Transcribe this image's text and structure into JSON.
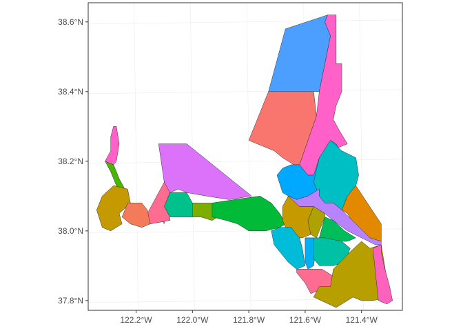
{
  "map": {
    "axes": {
      "lon_ticks": [
        -122.2,
        -122.0,
        -121.8,
        -121.6,
        -121.4
      ],
      "lat_ticks": [
        37.8,
        38.0,
        38.2,
        38.4,
        38.6
      ],
      "lon_labels": [
        "122.2°W",
        "122.0°W",
        "121.8°W",
        "121.6°W",
        "121.4°W"
      ],
      "lat_labels": [
        "37.8°N",
        "38.0°N",
        "38.2°N",
        "38.4°N",
        "38.6°N"
      ],
      "xlim": [
        -122.37,
        -121.255
      ],
      "ylim": [
        37.772,
        38.655
      ]
    },
    "style": {
      "grid": true,
      "border_color": "#333333",
      "grid_color": "#ebebeb",
      "background": "#ffffff"
    },
    "regions": [
      {
        "fill": "#4C9EFF",
        "points": [
          [
            -121.67,
            38.58
          ],
          [
            -121.52,
            38.62
          ],
          [
            -121.53,
            38.6
          ],
          [
            -121.51,
            38.56
          ],
          [
            -121.52,
            38.52
          ],
          [
            -121.55,
            38.4
          ],
          [
            -121.57,
            38.4
          ],
          [
            -121.73,
            38.4
          ],
          [
            -121.67,
            38.58
          ]
        ]
      },
      {
        "fill": "#FF61C9",
        "points": [
          [
            -121.52,
            38.62
          ],
          [
            -121.49,
            38.62
          ],
          [
            -121.49,
            38.48
          ],
          [
            -121.47,
            38.48
          ],
          [
            -121.47,
            38.4
          ],
          [
            -121.49,
            38.36
          ],
          [
            -121.5,
            38.32
          ],
          [
            -121.48,
            38.29
          ],
          [
            -121.45,
            38.25
          ],
          [
            -121.54,
            38.22
          ],
          [
            -121.56,
            38.16
          ],
          [
            -121.59,
            38.16
          ],
          [
            -121.62,
            38.19
          ],
          [
            -121.59,
            38.26
          ],
          [
            -121.56,
            38.33
          ],
          [
            -121.55,
            38.4
          ],
          [
            -121.52,
            38.52
          ],
          [
            -121.51,
            38.56
          ],
          [
            -121.53,
            38.6
          ],
          [
            -121.52,
            38.62
          ]
        ]
      },
      {
        "fill": "#F8766D",
        "points": [
          [
            -121.73,
            38.4
          ],
          [
            -121.57,
            38.4
          ],
          [
            -121.56,
            38.33
          ],
          [
            -121.59,
            38.26
          ],
          [
            -121.62,
            38.19
          ],
          [
            -121.64,
            38.19
          ],
          [
            -121.68,
            38.21
          ],
          [
            -121.71,
            38.23
          ],
          [
            -121.8,
            38.26
          ],
          [
            -121.73,
            38.4
          ]
        ]
      },
      {
        "fill": "#00A9FF",
        "points": [
          [
            -121.62,
            38.19
          ],
          [
            -121.59,
            38.16
          ],
          [
            -121.57,
            38.16
          ],
          [
            -121.55,
            38.21
          ],
          [
            -121.51,
            38.26
          ],
          [
            -121.49,
            38.25
          ],
          [
            -121.47,
            38.22
          ],
          [
            -121.51,
            38.17
          ],
          [
            -121.55,
            38.12
          ],
          [
            -121.59,
            38.1
          ],
          [
            -121.63,
            38.09
          ],
          [
            -121.66,
            38.1
          ],
          [
            -121.68,
            38.11
          ],
          [
            -121.7,
            38.16
          ],
          [
            -121.68,
            38.18
          ],
          [
            -121.65,
            38.19
          ],
          [
            -121.62,
            38.19
          ]
        ]
      },
      {
        "fill": "#00BFC4",
        "points": [
          [
            -121.51,
            38.26
          ],
          [
            -121.47,
            38.23
          ],
          [
            -121.42,
            38.21
          ],
          [
            -121.41,
            38.16
          ],
          [
            -121.42,
            38.13
          ],
          [
            -121.45,
            38.1
          ],
          [
            -121.47,
            38.06
          ],
          [
            -121.5,
            38.08
          ],
          [
            -121.53,
            38.08
          ],
          [
            -121.55,
            38.1
          ],
          [
            -121.57,
            38.14
          ],
          [
            -121.55,
            38.21
          ],
          [
            -121.51,
            38.26
          ]
        ]
      },
      {
        "fill": "#E38900",
        "points": [
          [
            -121.42,
            38.13
          ],
          [
            -121.33,
            38.02
          ],
          [
            -121.33,
            37.97
          ],
          [
            -121.37,
            37.98
          ],
          [
            -121.42,
            38.01
          ],
          [
            -121.45,
            38.05
          ],
          [
            -121.47,
            38.06
          ],
          [
            -121.45,
            38.1
          ],
          [
            -121.42,
            38.13
          ]
        ]
      },
      {
        "fill": "#DC71FA",
        "points": [
          [
            -122.12,
            38.25
          ],
          [
            -122.02,
            38.25
          ],
          [
            -121.79,
            38.1
          ],
          [
            -121.87,
            38.09
          ],
          [
            -121.95,
            38.1
          ],
          [
            -122.02,
            38.11
          ],
          [
            -122.05,
            38.12
          ],
          [
            -122.08,
            38.11
          ],
          [
            -122.1,
            38.09
          ],
          [
            -122.13,
            38.06
          ],
          [
            -122.1,
            38.02
          ],
          [
            -122.1,
            38.14
          ],
          [
            -122.12,
            38.25
          ]
        ]
      },
      {
        "fill": "#00C08B",
        "points": [
          [
            -122.08,
            38.11
          ],
          [
            -122.02,
            38.11
          ],
          [
            -122.0,
            38.08
          ],
          [
            -122.0,
            38.04
          ],
          [
            -122.08,
            38.04
          ],
          [
            -122.1,
            38.07
          ],
          [
            -122.08,
            38.11
          ]
        ]
      },
      {
        "fill": "#FF6C91",
        "points": [
          [
            -122.1,
            38.14
          ],
          [
            -122.08,
            38.11
          ],
          [
            -122.1,
            38.07
          ],
          [
            -122.08,
            38.04
          ],
          [
            -122.08,
            38.03
          ],
          [
            -122.15,
            38.02
          ],
          [
            -122.16,
            38.05
          ],
          [
            -122.14,
            38.08
          ],
          [
            -122.1,
            38.14
          ]
        ]
      },
      {
        "fill": "#7CAE00",
        "points": [
          [
            -122.0,
            38.08
          ],
          [
            -121.93,
            38.08
          ],
          [
            -121.91,
            38.04
          ],
          [
            -121.93,
            38.03
          ],
          [
            -121.97,
            38.04
          ],
          [
            -122.0,
            38.04
          ],
          [
            -122.0,
            38.08
          ]
        ]
      },
      {
        "fill": "#00BA38",
        "points": [
          [
            -121.93,
            38.08
          ],
          [
            -121.85,
            38.09
          ],
          [
            -121.76,
            38.1
          ],
          [
            -121.72,
            38.08
          ],
          [
            -121.69,
            38.05
          ],
          [
            -121.67,
            38.02
          ],
          [
            -121.69,
            38.01
          ],
          [
            -121.74,
            38.0
          ],
          [
            -121.8,
            38.0
          ],
          [
            -121.84,
            38.02
          ],
          [
            -121.88,
            38.03
          ],
          [
            -121.93,
            38.04
          ],
          [
            -121.93,
            38.08
          ]
        ]
      },
      {
        "fill": "#49B500",
        "points": [
          [
            -122.31,
            38.2
          ],
          [
            -122.28,
            38.19
          ],
          [
            -122.26,
            38.15
          ],
          [
            -122.24,
            38.12
          ],
          [
            -122.25,
            38.08
          ],
          [
            -122.28,
            38.08
          ],
          [
            -122.27,
            38.13
          ],
          [
            -122.29,
            38.17
          ],
          [
            -122.31,
            38.2
          ]
        ]
      },
      {
        "fill": "#FF61C9",
        "points": [
          [
            -122.31,
            38.2
          ],
          [
            -122.29,
            38.23
          ],
          [
            -122.29,
            38.27
          ],
          [
            -122.28,
            38.3
          ],
          [
            -122.27,
            38.3
          ],
          [
            -122.26,
            38.25
          ],
          [
            -122.27,
            38.2
          ],
          [
            -122.28,
            38.19
          ],
          [
            -122.31,
            38.2
          ]
        ]
      },
      {
        "fill": "#C49A00",
        "points": [
          [
            -122.28,
            38.13
          ],
          [
            -122.23,
            38.12
          ],
          [
            -122.22,
            38.08
          ],
          [
            -122.26,
            38.05
          ],
          [
            -122.25,
            38.02
          ],
          [
            -122.29,
            38.0
          ],
          [
            -122.32,
            38.01
          ],
          [
            -122.34,
            38.06
          ],
          [
            -122.32,
            38.1
          ],
          [
            -122.28,
            38.13
          ]
        ]
      },
      {
        "fill": "#F37B59",
        "points": [
          [
            -122.23,
            38.08
          ],
          [
            -122.18,
            38.08
          ],
          [
            -122.17,
            38.07
          ],
          [
            -122.16,
            38.06
          ],
          [
            -122.15,
            38.02
          ],
          [
            -122.18,
            38.01
          ],
          [
            -122.22,
            38.02
          ],
          [
            -122.25,
            38.04
          ],
          [
            -122.23,
            38.08
          ]
        ]
      },
      {
        "fill": "#B983FF",
        "points": [
          [
            -121.66,
            38.1
          ],
          [
            -121.63,
            38.09
          ],
          [
            -121.59,
            38.1
          ],
          [
            -121.55,
            38.12
          ],
          [
            -121.55,
            38.1
          ],
          [
            -121.53,
            38.08
          ],
          [
            -121.5,
            38.08
          ],
          [
            -121.47,
            38.06
          ],
          [
            -121.42,
            38.02
          ],
          [
            -121.37,
            37.98
          ],
          [
            -121.33,
            37.97
          ],
          [
            -121.33,
            37.96
          ],
          [
            -121.35,
            37.96
          ],
          [
            -121.4,
            37.98
          ],
          [
            -121.45,
            38.0
          ],
          [
            -121.5,
            38.03
          ],
          [
            -121.53,
            38.05
          ],
          [
            -121.57,
            38.07
          ],
          [
            -121.62,
            38.07
          ],
          [
            -121.66,
            38.1
          ]
        ]
      },
      {
        "fill": "#C49A00",
        "points": [
          [
            -121.66,
            38.1
          ],
          [
            -121.62,
            38.07
          ],
          [
            -121.57,
            38.07
          ],
          [
            -121.59,
            38.03
          ],
          [
            -121.58,
            37.99
          ],
          [
            -121.61,
            37.98
          ],
          [
            -121.63,
            37.98
          ],
          [
            -121.67,
            38.01
          ],
          [
            -121.68,
            38.03
          ],
          [
            -121.68,
            38.07
          ],
          [
            -121.66,
            38.1
          ]
        ]
      },
      {
        "fill": "#AEA200",
        "points": [
          [
            -121.57,
            38.07
          ],
          [
            -121.53,
            38.05
          ],
          [
            -121.53,
            38.04
          ],
          [
            -121.55,
            38.0
          ],
          [
            -121.56,
            37.98
          ],
          [
            -121.58,
            37.99
          ],
          [
            -121.59,
            38.03
          ],
          [
            -121.57,
            38.07
          ]
        ]
      },
      {
        "fill": "#00BD5C",
        "points": [
          [
            -121.53,
            38.04
          ],
          [
            -121.5,
            38.03
          ],
          [
            -121.46,
            38.0
          ],
          [
            -121.42,
            37.98
          ],
          [
            -121.45,
            37.97
          ],
          [
            -121.5,
            37.97
          ],
          [
            -121.55,
            37.98
          ],
          [
            -121.53,
            38.04
          ]
        ]
      },
      {
        "fill": "#00BCD8",
        "points": [
          [
            -121.69,
            38.01
          ],
          [
            -121.65,
            38.01
          ],
          [
            -121.62,
            37.98
          ],
          [
            -121.61,
            37.95
          ],
          [
            -121.6,
            37.9
          ],
          [
            -121.63,
            37.89
          ],
          [
            -121.66,
            37.91
          ],
          [
            -121.68,
            37.93
          ],
          [
            -121.71,
            37.96
          ],
          [
            -121.72,
            38.0
          ],
          [
            -121.69,
            38.01
          ]
        ]
      },
      {
        "fill": "#00B0F6",
        "points": [
          [
            -121.6,
            37.98
          ],
          [
            -121.57,
            37.98
          ],
          [
            -121.56,
            37.96
          ],
          [
            -121.57,
            37.9
          ],
          [
            -121.59,
            37.89
          ],
          [
            -121.6,
            37.91
          ],
          [
            -121.6,
            37.98
          ]
        ]
      },
      {
        "fill": "#00C1A3",
        "points": [
          [
            -121.57,
            37.98
          ],
          [
            -121.53,
            37.98
          ],
          [
            -121.47,
            37.97
          ],
          [
            -121.44,
            37.95
          ],
          [
            -121.46,
            37.91
          ],
          [
            -121.5,
            37.9
          ],
          [
            -121.55,
            37.9
          ],
          [
            -121.57,
            37.92
          ],
          [
            -121.57,
            37.98
          ]
        ]
      },
      {
        "fill": "#FF6C91",
        "points": [
          [
            -121.63,
            37.89
          ],
          [
            -121.59,
            37.89
          ],
          [
            -121.54,
            37.89
          ],
          [
            -121.5,
            37.87
          ],
          [
            -121.51,
            37.84
          ],
          [
            -121.55,
            37.83
          ],
          [
            -121.58,
            37.82
          ],
          [
            -121.6,
            37.85
          ],
          [
            -121.63,
            37.88
          ],
          [
            -121.63,
            37.89
          ]
        ]
      },
      {
        "fill": "#B79F00",
        "points": [
          [
            -121.5,
            37.89
          ],
          [
            -121.44,
            37.94
          ],
          [
            -121.4,
            37.97
          ],
          [
            -121.37,
            37.95
          ],
          [
            -121.33,
            37.96
          ],
          [
            -121.3,
            37.81
          ],
          [
            -121.36,
            37.8
          ],
          [
            -121.4,
            37.8
          ],
          [
            -121.43,
            37.81
          ],
          [
            -121.49,
            37.78
          ],
          [
            -121.57,
            37.81
          ],
          [
            -121.55,
            37.84
          ],
          [
            -121.51,
            37.84
          ],
          [
            -121.5,
            37.89
          ]
        ]
      },
      {
        "fill": "#FF62BC",
        "points": [
          [
            -121.33,
            37.96
          ],
          [
            -121.33,
            37.94
          ],
          [
            -121.32,
            37.9
          ],
          [
            -121.3,
            37.84
          ],
          [
            -121.29,
            37.8
          ],
          [
            -121.31,
            37.79
          ],
          [
            -121.34,
            37.8
          ],
          [
            -121.36,
            37.95
          ],
          [
            -121.33,
            37.96
          ]
        ]
      }
    ]
  }
}
